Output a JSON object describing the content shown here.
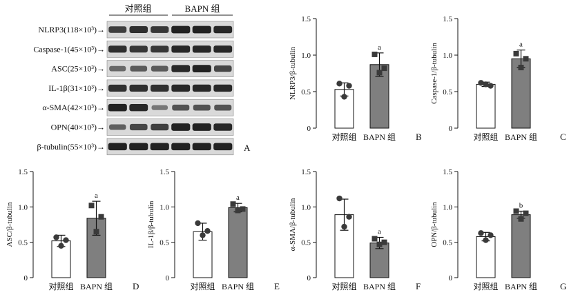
{
  "blot": {
    "groups": [
      "对照组",
      "BAPN 组"
    ],
    "rows": [
      {
        "label": "NLRP3(118×10³)→",
        "bands": [
          0.75,
          0.85,
          0.8,
          0.95,
          0.95,
          0.9
        ]
      },
      {
        "label": "Caspase-1(45×10³)→",
        "bands": [
          0.85,
          0.8,
          0.8,
          0.9,
          0.9,
          0.9
        ]
      },
      {
        "label": "ASC(25×10³)→",
        "bands": [
          0.45,
          0.55,
          0.55,
          0.9,
          0.95,
          0.7
        ]
      },
      {
        "label": "IL-1β(31×10³)→",
        "bands": [
          0.85,
          0.85,
          0.85,
          0.9,
          0.9,
          0.9
        ]
      },
      {
        "label": "α-SMA(42×10³)→",
        "bands": [
          0.95,
          0.9,
          0.35,
          0.6,
          0.6,
          0.6
        ]
      },
      {
        "label": "OPN(40×10³)→",
        "bands": [
          0.5,
          0.7,
          0.75,
          0.95,
          0.95,
          0.9
        ]
      },
      {
        "label": "β-tubulin(55×10³)→",
        "bands": [
          0.95,
          0.95,
          0.95,
          0.95,
          0.95,
          0.95
        ]
      }
    ],
    "panel_letter": "A"
  },
  "colors": {
    "control_bar": "#ffffff",
    "bapn_bar": "#7f7f7f",
    "dot": "#3a3a3a",
    "band": "#1a1a1a",
    "blot_bg": "#d9d9d9"
  },
  "chart_data": [
    {
      "type": "bar",
      "panel": "B",
      "ylabel": "NLRP3/β-tubulin",
      "categories": [
        "对照组",
        "BAPN 组"
      ],
      "values": [
        0.53,
        0.87
      ],
      "errors": [
        0.09,
        0.16
      ],
      "points": [
        [
          0.61,
          0.58,
          0.43
        ],
        [
          1.01,
          0.82,
          0.76
        ]
      ],
      "sig": [
        "",
        "a"
      ],
      "ylim": [
        0,
        1.5
      ],
      "yticks": [
        "0",
        "0.5",
        "1.0",
        "1.5"
      ]
    },
    {
      "type": "bar",
      "panel": "C",
      "ylabel": "Caspase-1/β-tubulin",
      "categories": [
        "对照组",
        "BAPN 组"
      ],
      "values": [
        0.6,
        0.95
      ],
      "errors": [
        0.03,
        0.12
      ],
      "points": [
        [
          0.62,
          0.58,
          0.6
        ],
        [
          1.02,
          0.95,
          0.83
        ]
      ],
      "sig": [
        "",
        "a"
      ],
      "ylim": [
        0,
        1.5
      ],
      "yticks": [
        "0",
        "0.5",
        "1.0",
        "1.5"
      ]
    },
    {
      "type": "bar",
      "panel": "D",
      "ylabel": "ASC/β-tubulin",
      "categories": [
        "对照组",
        "BAPN 组"
      ],
      "values": [
        0.52,
        0.84
      ],
      "errors": [
        0.08,
        0.24
      ],
      "points": [
        [
          0.57,
          0.53,
          0.45
        ],
        [
          1.02,
          0.86,
          0.65
        ]
      ],
      "sig": [
        "",
        "a"
      ],
      "ylim": [
        0,
        1.5
      ],
      "yticks": [
        "0",
        "0.5",
        "1.0",
        "1.5"
      ]
    },
    {
      "type": "bar",
      "panel": "E",
      "ylabel": "IL-1β/β-tubulin",
      "categories": [
        "对照组",
        "BAPN 组"
      ],
      "values": [
        0.65,
        0.99
      ],
      "errors": [
        0.12,
        0.06
      ],
      "points": [
        [
          0.77,
          0.66,
          0.6
        ],
        [
          1.04,
          0.97,
          0.95
        ]
      ],
      "sig": [
        "",
        "a"
      ],
      "ylim": [
        0,
        1.5
      ],
      "yticks": [
        "0",
        "0.5",
        "1.0",
        "1.5"
      ]
    },
    {
      "type": "bar",
      "panel": "F",
      "ylabel": "α-SMA/β-tubulin",
      "categories": [
        "对照组",
        "BAPN 组"
      ],
      "values": [
        0.89,
        0.49
      ],
      "errors": [
        0.22,
        0.08
      ],
      "points": [
        [
          1.12,
          0.86,
          0.72
        ],
        [
          0.55,
          0.5,
          0.47
        ]
      ],
      "sig": [
        "",
        "a"
      ],
      "ylim": [
        0,
        1.5
      ],
      "yticks": [
        "0",
        "0.5",
        "1.0",
        "1.5"
      ]
    },
    {
      "type": "bar",
      "panel": "G",
      "ylabel": "OPN/β-tubulin",
      "categories": [
        "对照组",
        "BAPN 组"
      ],
      "values": [
        0.58,
        0.89
      ],
      "errors": [
        0.06,
        0.05
      ],
      "points": [
        [
          0.63,
          0.6,
          0.53
        ],
        [
          0.94,
          0.91,
          0.83
        ]
      ],
      "sig": [
        "",
        "b"
      ],
      "ylim": [
        0,
        1.5
      ],
      "yticks": [
        "0",
        "0.5",
        "1.0",
        "1.5"
      ]
    }
  ]
}
